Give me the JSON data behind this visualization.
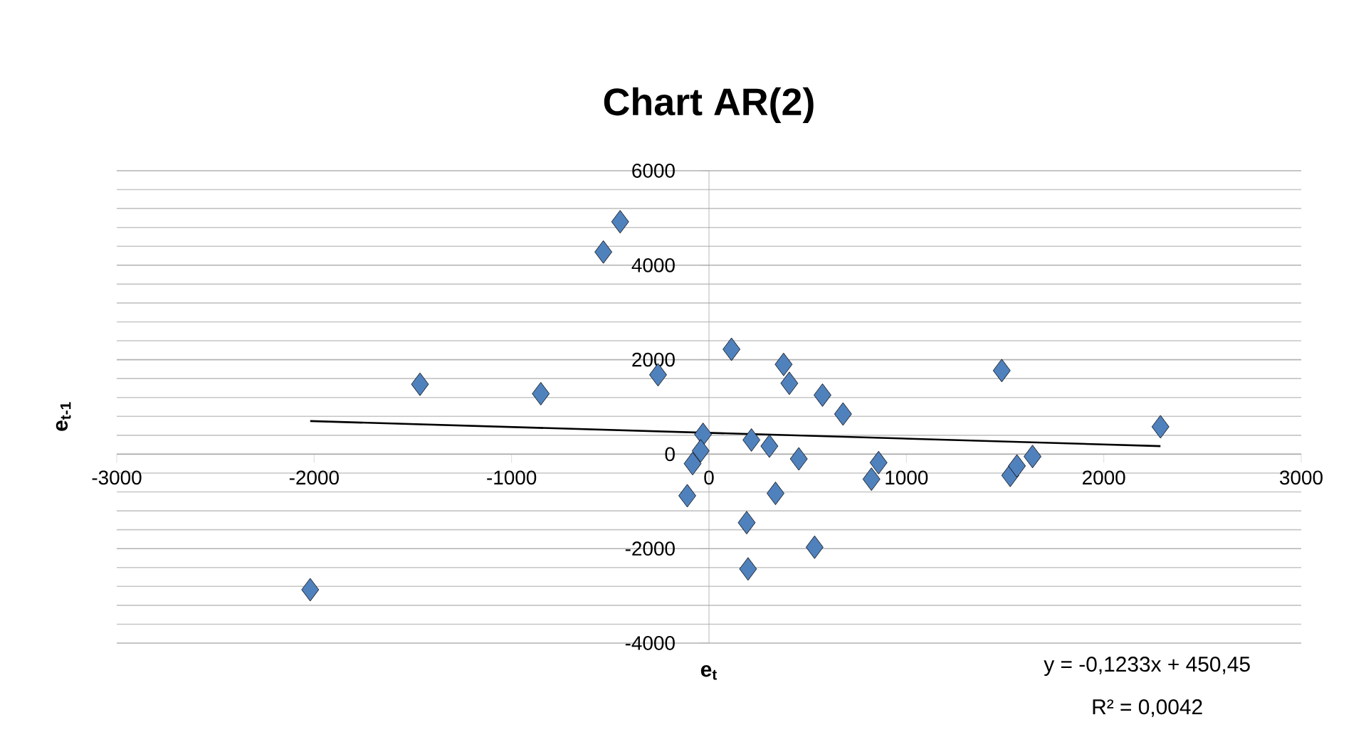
{
  "chart_data": {
    "type": "scatter",
    "title": "Chart AR(2)",
    "xlabel": "**e$_{t}$**",
    "ylabel": "**e$_{t-1}$**",
    "xlim": [
      -3000,
      3000
    ],
    "xticks": [
      -3000,
      -2000,
      -1000,
      0,
      1000,
      2000,
      3000
    ],
    "ylim": [
      -4000,
      6000
    ],
    "yticks": [
      -4000,
      -2000,
      0,
      2000,
      4000,
      6000
    ],
    "grid": "y",
    "series": [
      {
        "color": "#4f81bd",
        "marker": "diamond",
        "x": [
          -2020,
          -1464,
          -852,
          -258,
          -535,
          -450,
          -30,
          -42,
          -83,
          -110,
          114,
          378,
          407,
          575,
          679,
          215,
          306,
          455,
          337,
          191,
          198,
          535,
          859,
          823,
          1483,
          1526,
          1560,
          1639,
          2287
        ],
        "values": [
          -2870,
          1480,
          1280,
          1680,
          4280,
          4920,
          420,
          70,
          -200,
          -880,
          2220,
          1900,
          1500,
          1250,
          850,
          300,
          170,
          -100,
          -830,
          -1450,
          -2430,
          -1970,
          -180,
          -530,
          1770,
          -450,
          -250,
          -50,
          580
        ]
      },
      {
        "type": "line",
        "color": "#000000",
        "marker": "none",
        "x": [
          -2020,
          2287
        ],
        "values": [
          700,
          170
        ]
      }
    ],
    "annotations": [
      "y = -0,1233x + 450,45",
      "R² = 0,0042"
    ]
  }
}
